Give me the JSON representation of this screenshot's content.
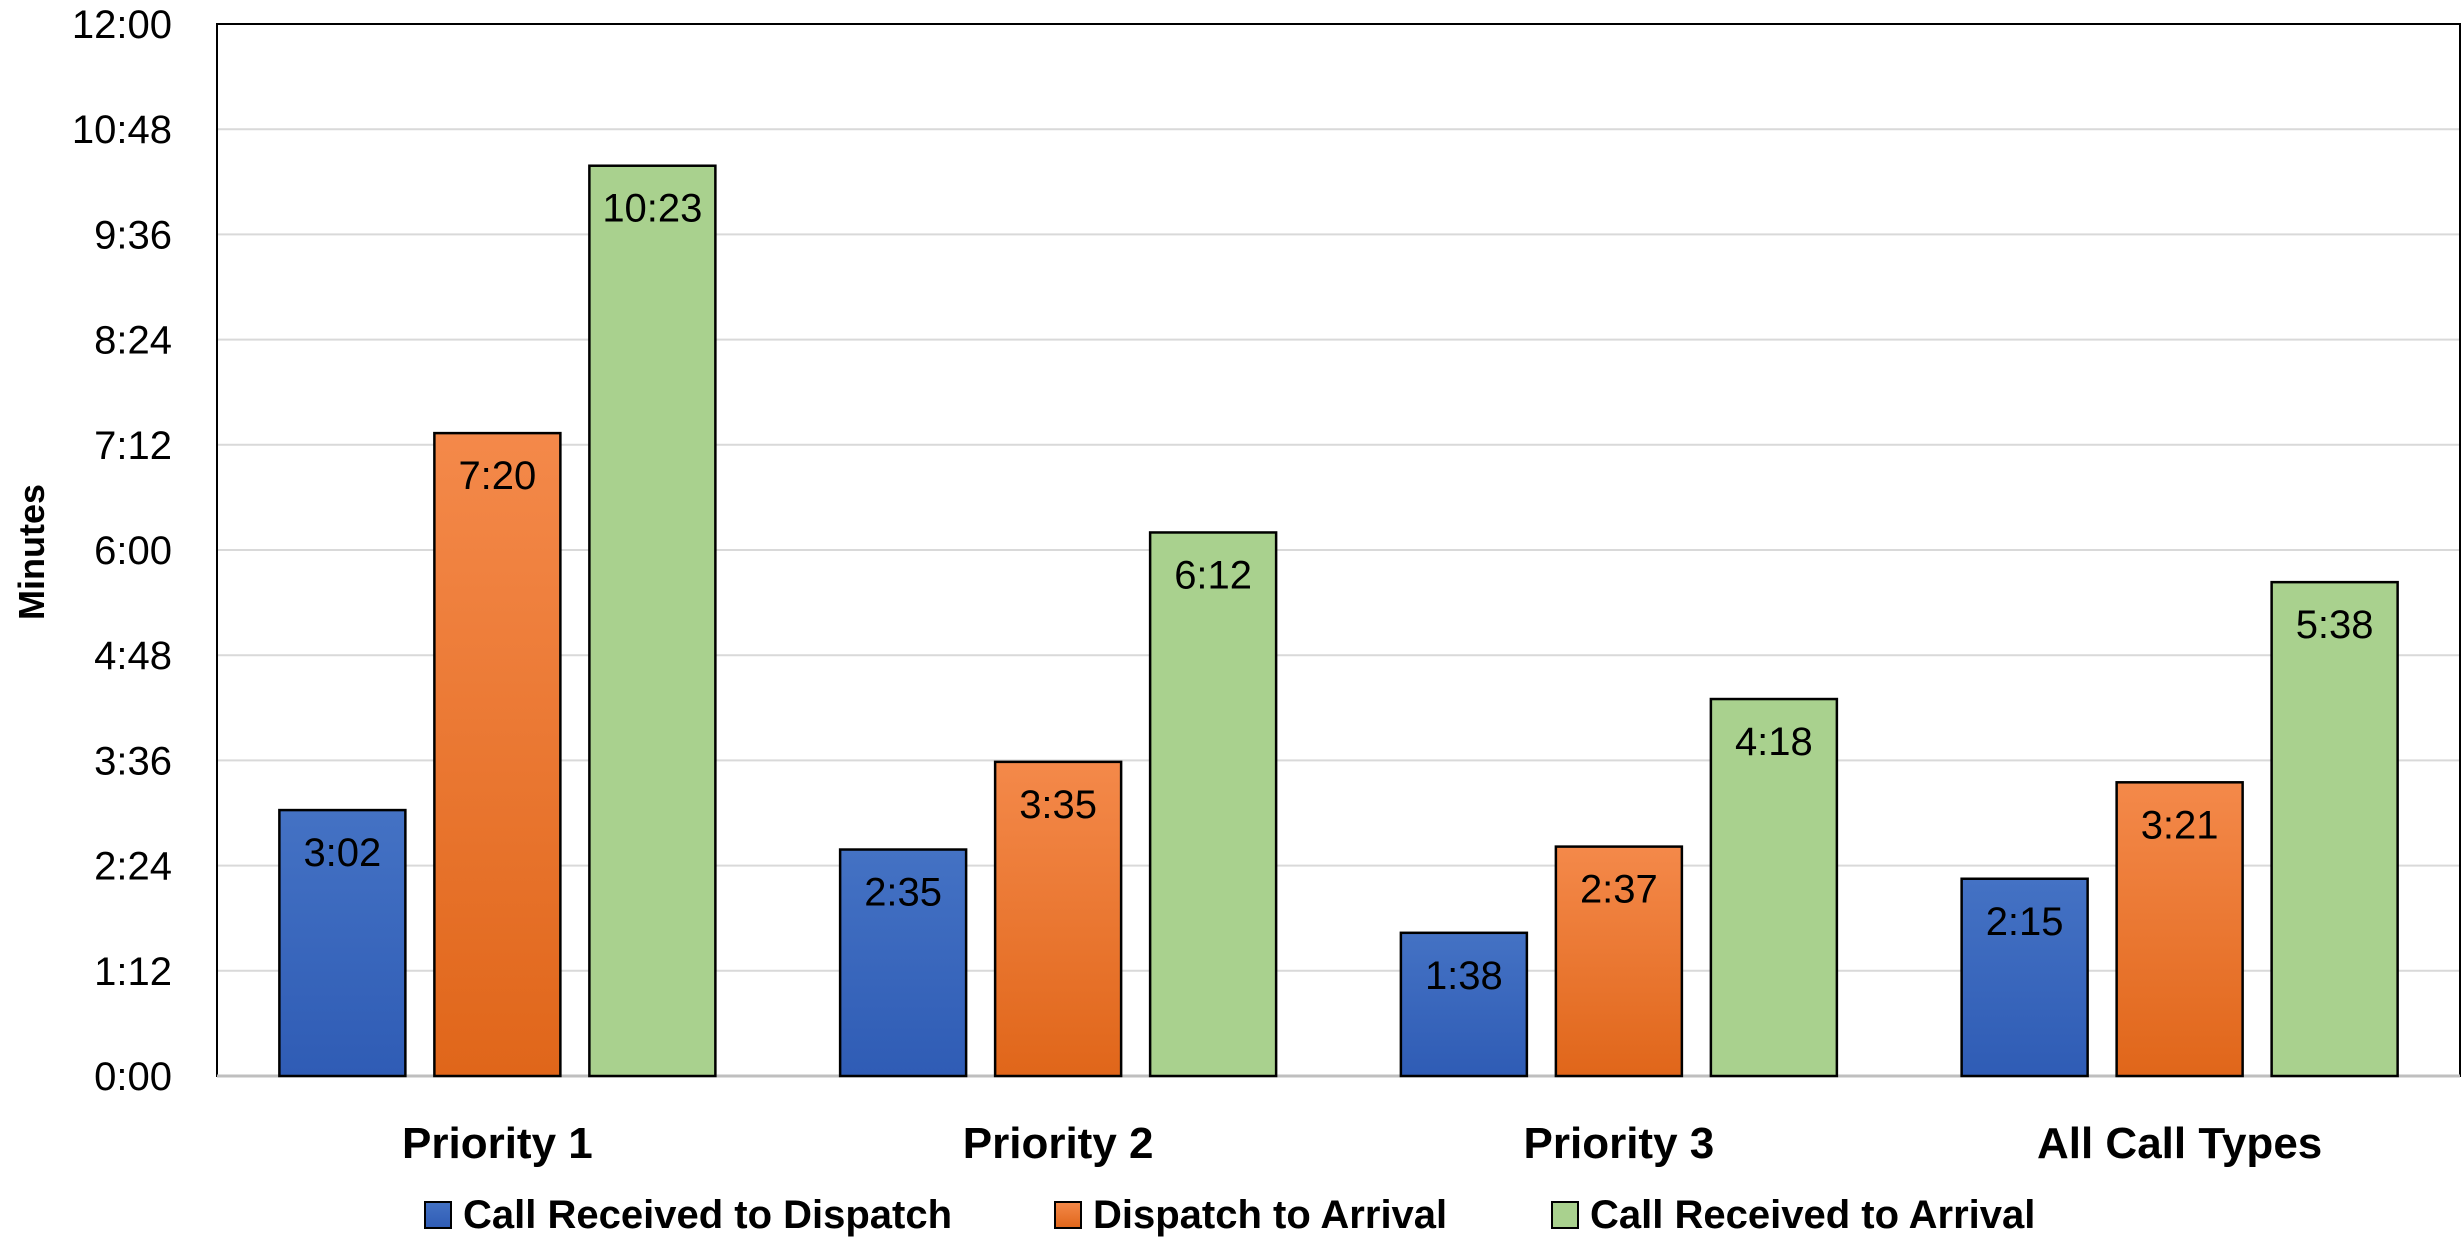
{
  "chart_data": {
    "type": "bar",
    "categories": [
      "Priority 1",
      "Priority 2",
      "Priority 3",
      "All Call Types"
    ],
    "series": [
      {
        "name": "Call Received to Dispatch",
        "values": [
          3.0333,
          2.5833,
          1.6333,
          2.25
        ],
        "labels": [
          "3:02",
          "2:35",
          "1:38",
          "2:15"
        ],
        "color": "#4472C4",
        "color_dark": "#2F5CB5"
      },
      {
        "name": "Dispatch to Arrival",
        "values": [
          7.3333,
          3.5833,
          2.6167,
          3.35
        ],
        "labels": [
          "7:20",
          "3:35",
          "2:37",
          "3:21"
        ],
        "color": "#F4894A",
        "color_dark": "#E0661A"
      },
      {
        "name": "Call Received to Arrival",
        "values": [
          10.3833,
          6.2,
          4.3,
          5.6333
        ],
        "labels": [
          "10:23",
          "6:12",
          "4:18",
          "5:38"
        ],
        "color": "#A9D18E",
        "color_dark": "#A9D18E"
      }
    ],
    "yticks": [
      "0:00",
      "1:12",
      "2:24",
      "3:36",
      "4:48",
      "6:00",
      "7:12",
      "8:24",
      "9:36",
      "10:48",
      "12:00"
    ],
    "ylim": [
      0,
      12
    ],
    "xlabel": "",
    "ylabel": "Minutes",
    "title": "",
    "grid": true,
    "legend_position": "bottom"
  }
}
